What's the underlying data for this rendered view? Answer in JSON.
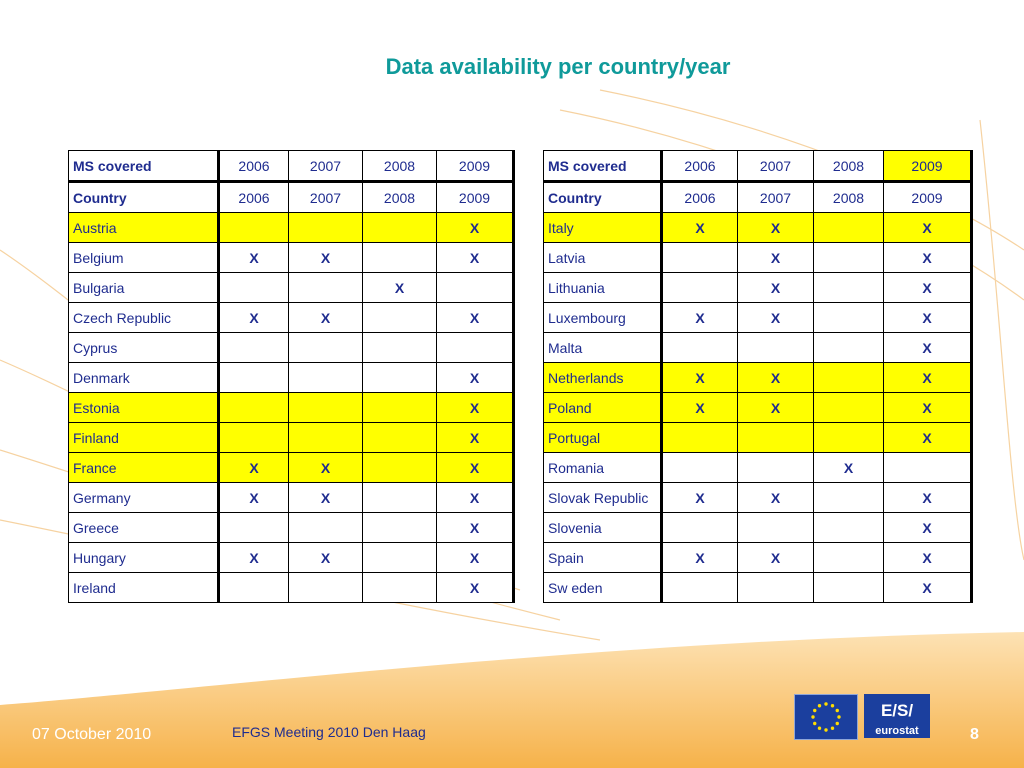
{
  "title": "Data availability per country/year",
  "header_row1": {
    "label": "MS covered",
    "years": [
      "2006",
      "2007",
      "2008",
      "2009"
    ]
  },
  "header_row2": {
    "label": "Country",
    "years": [
      "2006",
      "2007",
      "2008",
      "2009"
    ]
  },
  "left_rows": [
    {
      "country": "Austria",
      "c2006": "",
      "c2007": "",
      "c2008": "",
      "c2009": "X",
      "highlight": true
    },
    {
      "country": "Belgium",
      "c2006": "X",
      "c2007": "X",
      "c2008": "",
      "c2009": "X",
      "highlight": false
    },
    {
      "country": "Bulgaria",
      "c2006": "",
      "c2007": "",
      "c2008": "X",
      "c2009": "",
      "highlight": false
    },
    {
      "country": "Czech Republic",
      "c2006": "X",
      "c2007": "X",
      "c2008": "",
      "c2009": "X",
      "highlight": false
    },
    {
      "country": "Cyprus",
      "c2006": "",
      "c2007": "",
      "c2008": "",
      "c2009": "",
      "highlight": false
    },
    {
      "country": "Denmark",
      "c2006": "",
      "c2007": "",
      "c2008": "",
      "c2009": "X",
      "highlight": false
    },
    {
      "country": "Estonia",
      "c2006": "",
      "c2007": "",
      "c2008": "",
      "c2009": "X",
      "highlight": true
    },
    {
      "country": "Finland",
      "c2006": "",
      "c2007": "",
      "c2008": "",
      "c2009": "X",
      "highlight": true
    },
    {
      "country": "France",
      "c2006": "X",
      "c2007": "X",
      "c2008": "",
      "c2009": "X",
      "highlight": true
    },
    {
      "country": "Germany",
      "c2006": "X",
      "c2007": "X",
      "c2008": "",
      "c2009": "X",
      "highlight": false
    },
    {
      "country": "Greece",
      "c2006": "",
      "c2007": "",
      "c2008": "",
      "c2009": "X",
      "highlight": false
    },
    {
      "country": "Hungary",
      "c2006": "X",
      "c2007": "X",
      "c2008": "",
      "c2009": "X",
      "highlight": false
    },
    {
      "country": "Ireland",
      "c2006": "",
      "c2007": "",
      "c2008": "",
      "c2009": "X",
      "highlight": false
    }
  ],
  "right_rows": [
    {
      "country": "Italy",
      "c2006": "X",
      "c2007": "X",
      "c2008": "",
      "c2009": "X",
      "highlight": true
    },
    {
      "country": "Latvia",
      "c2006": "",
      "c2007": "X",
      "c2008": "",
      "c2009": "X",
      "highlight": false
    },
    {
      "country": "Lithuania",
      "c2006": "",
      "c2007": "X",
      "c2008": "",
      "c2009": "X",
      "highlight": false
    },
    {
      "country": "Luxembourg",
      "c2006": "X",
      "c2007": "X",
      "c2008": "",
      "c2009": "X",
      "highlight": false
    },
    {
      "country": "Malta",
      "c2006": "",
      "c2007": "",
      "c2008": "",
      "c2009": "X",
      "highlight": false
    },
    {
      "country": "Netherlands",
      "c2006": "X",
      "c2007": "X",
      "c2008": "",
      "c2009": "X",
      "highlight": true
    },
    {
      "country": "Poland",
      "c2006": "X",
      "c2007": "X",
      "c2008": "",
      "c2009": "X",
      "highlight": true
    },
    {
      "country": "Portugal",
      "c2006": "",
      "c2007": "",
      "c2008": "",
      "c2009": "X",
      "highlight": true
    },
    {
      "country": "Romania",
      "c2006": "",
      "c2007": "",
      "c2008": "X",
      "c2009": "",
      "highlight": false
    },
    {
      "country": "Slovak Republic",
      "c2006": "X",
      "c2007": "X",
      "c2008": "",
      "c2009": "X",
      "highlight": false
    },
    {
      "country": "Slovenia",
      "c2006": "",
      "c2007": "",
      "c2008": "",
      "c2009": "X",
      "highlight": false
    },
    {
      "country": "Spain",
      "c2006": "X",
      "c2007": "X",
      "c2008": "",
      "c2009": "X",
      "highlight": false
    },
    {
      "country": "Sw eden",
      "c2006": "",
      "c2007": "",
      "c2008": "",
      "c2009": "X",
      "highlight": false
    }
  ],
  "footer": {
    "date": "07 October 2010",
    "meeting": "EFGS Meeting 2010 Den Haag",
    "page": "8"
  },
  "logos": {
    "eu_flag": "eu-flag-icon",
    "eurostat": "eurostat",
    "eurostat_mark": "E/S/"
  },
  "colors": {
    "title": "#0f9a9a",
    "text": "#1f2c8f",
    "highlight": "#ffff00",
    "footer_band": "#f7b84a"
  }
}
